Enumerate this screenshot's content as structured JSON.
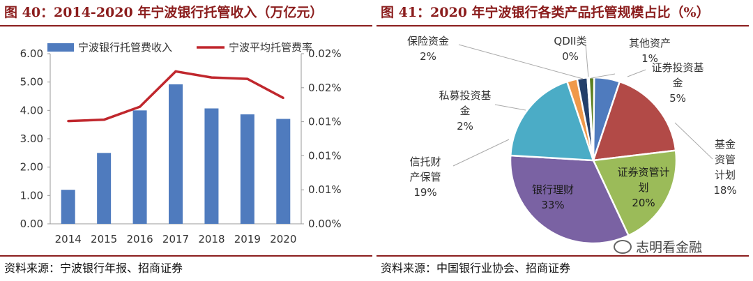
{
  "left": {
    "title": "图 40：2014-2020 年宁波银行托管收入（万亿元）",
    "source": "资料来源：宁波银行年报、招商证券"
  },
  "right": {
    "title": "图 41：2020 年宁波银行各类产品托管规模占比（%）",
    "source": "资料来源：中国银行业协会、招商证券"
  },
  "watermark": "志明看金融",
  "chart_data": [
    {
      "type": "bar",
      "categories": [
        "2014",
        "2015",
        "2016",
        "2017",
        "2018",
        "2019",
        "2020"
      ],
      "series": [
        {
          "name": "宁波银行托管费收入",
          "type": "bar",
          "axis": "left",
          "color": "#4f7bbe",
          "values": [
            1.2,
            2.5,
            4.0,
            4.92,
            4.07,
            3.86,
            3.7
          ]
        },
        {
          "name": "宁波平均托管费率",
          "type": "line",
          "axis": "right",
          "color": "#c0272d",
          "values": [
            0.0151,
            0.0153,
            0.0172,
            0.0224,
            0.0215,
            0.0213,
            0.0185
          ]
        }
      ],
      "ylim": [
        0,
        6
      ],
      "yticks": [
        "0.00",
        "1.00",
        "2.00",
        "3.00",
        "4.00",
        "5.00",
        "6.00"
      ],
      "y2lim": [
        0,
        0.025
      ],
      "y2ticks": [
        "0.00%",
        "0.01%",
        "0.01%",
        "0.01%",
        "0.02%",
        "0.02%"
      ],
      "legend_position": "top"
    },
    {
      "type": "pie",
      "slices": [
        {
          "label": "证券投资基金",
          "label_lines": [
            "证券投资基",
            "金",
            "5%"
          ],
          "value": 5,
          "color": "#4f7bbe"
        },
        {
          "label": "基金资管计划",
          "label_lines": [
            "基金",
            "资管",
            "计划",
            "18%"
          ],
          "value": 18,
          "color": "#b24a47"
        },
        {
          "label": "证券资管计划",
          "label_lines": [
            "证券资管计",
            "划",
            "20%"
          ],
          "value": 20,
          "color": "#9bbb59"
        },
        {
          "label": "银行理财",
          "label_lines": [
            "银行理财",
            "33%"
          ],
          "value": 33,
          "color": "#7a62a3"
        },
        {
          "label": "信托财产保管",
          "label_lines": [
            "信托财",
            "产保管",
            "19%"
          ],
          "value": 19,
          "color": "#4bacc6"
        },
        {
          "label": "私募投资基金",
          "label_lines": [
            "私募投资基",
            "金",
            "2%"
          ],
          "value": 2,
          "color": "#f0994a"
        },
        {
          "label": "保险资金",
          "label_lines": [
            "保险资金",
            "2%"
          ],
          "value": 2,
          "color": "#243f6a"
        },
        {
          "label": "QDII类",
          "label_lines": [
            "QDII类",
            "0%"
          ],
          "value": 0.3,
          "color": "#6e2a28"
        },
        {
          "label": "其他资产",
          "label_lines": [
            "其他资产",
            "1%"
          ],
          "value": 1,
          "color": "#5a7e1f"
        }
      ]
    }
  ]
}
